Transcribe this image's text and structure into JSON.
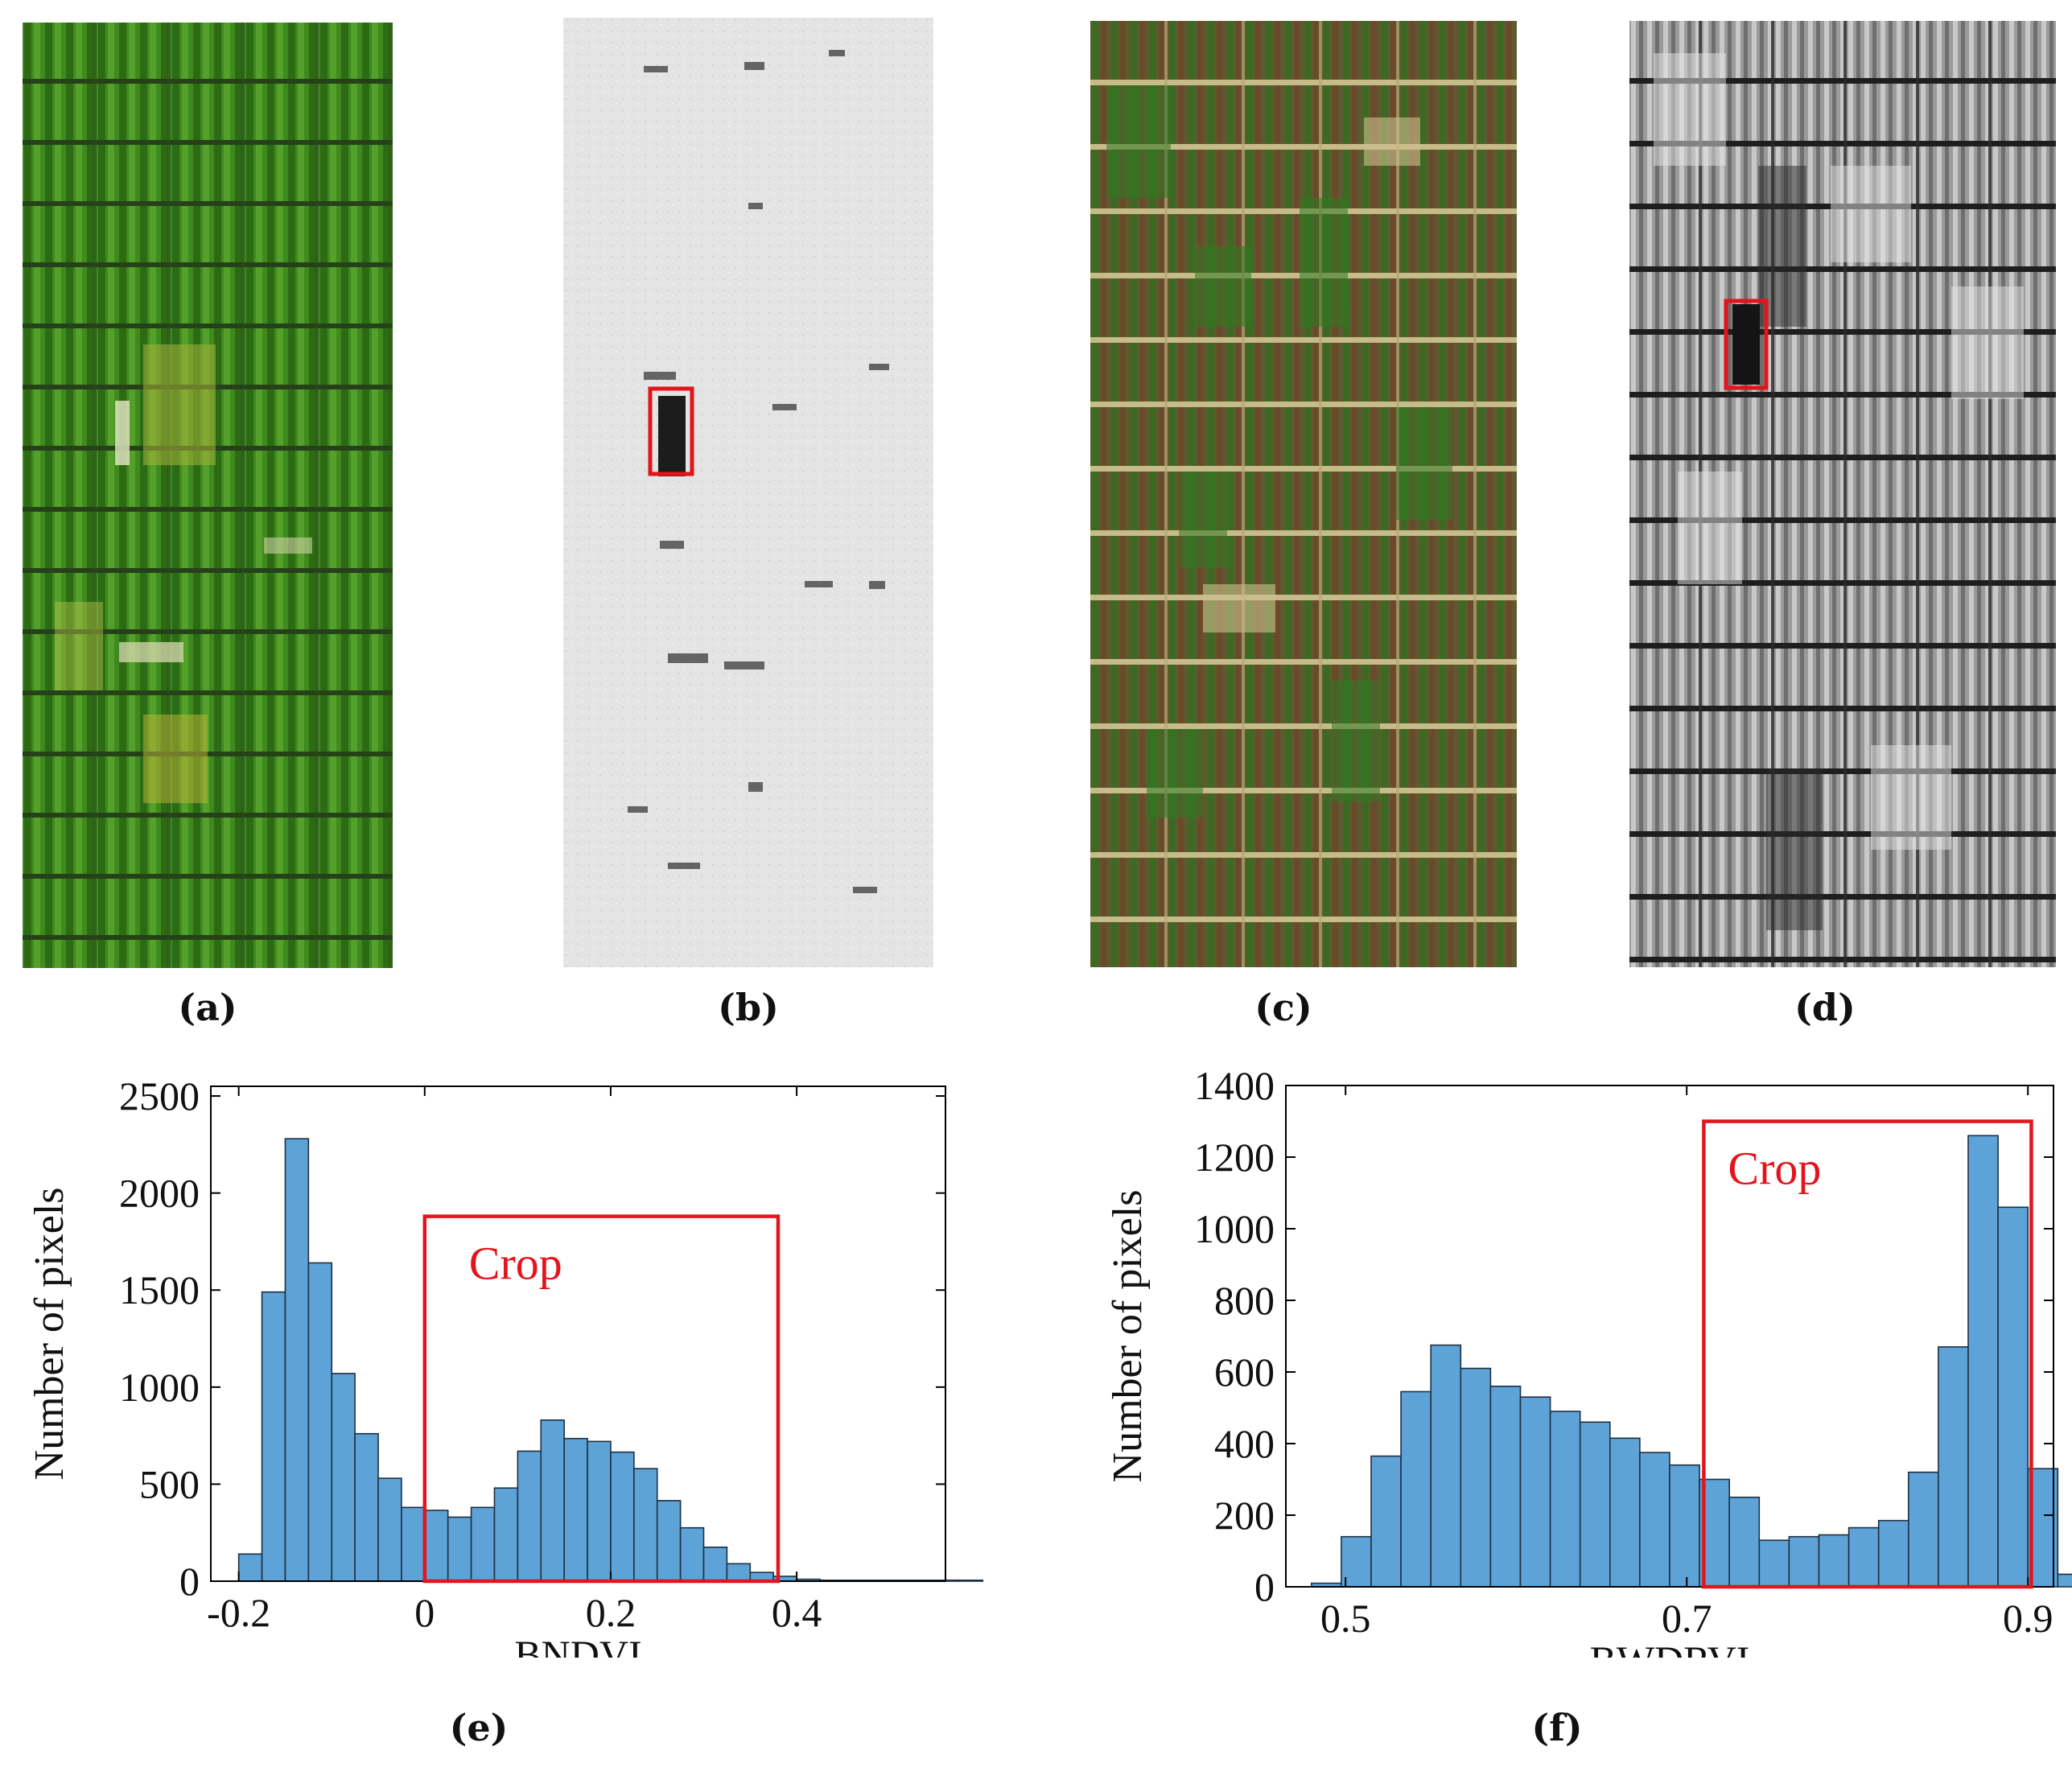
{
  "figure": {
    "panels": [
      {
        "id": "a",
        "label": "(a)",
        "kind": "RGB aerial image of crop plots",
        "palette": "green"
      },
      {
        "id": "b",
        "label": "(b)",
        "kind": "BNDVI grayscale map",
        "palette": "light-gray"
      },
      {
        "id": "c",
        "label": "(c)",
        "kind": "RGB aerial image of crop plots",
        "palette": "olive"
      },
      {
        "id": "d",
        "label": "(d)",
        "kind": "BWDRVI grayscale map",
        "palette": "dark-gray"
      }
    ],
    "label_e": "(e)",
    "label_f": "(f)",
    "highlight_color": "#e3141c",
    "bar_color": "#5da3d8",
    "bar_edge": "#1f2f3f"
  },
  "chart_data": [
    {
      "type": "bar",
      "panel": "e",
      "xlabel": "BNDVI",
      "ylabel": "Number of pixels",
      "xlim": [
        -0.23,
        0.56
      ],
      "ylim": [
        0,
        2550
      ],
      "xticks": [
        -0.2,
        0,
        0.2,
        0.4
      ],
      "xtick_labels": [
        "-0.2",
        "0",
        "0.2",
        "0.4"
      ],
      "yticks": [
        0,
        500,
        1000,
        1500,
        2000,
        2500
      ],
      "ytick_labels": [
        "0",
        "500",
        "1000",
        "1500",
        "2000",
        "2500"
      ],
      "bin_start": -0.2,
      "bin_width": 0.025,
      "values": [
        140,
        1490,
        2280,
        1640,
        1070,
        760,
        530,
        380,
        365,
        330,
        380,
        480,
        670,
        830,
        735,
        720,
        665,
        580,
        415,
        275,
        175,
        90,
        45,
        25,
        10,
        5,
        5,
        5,
        5,
        5,
        5,
        5
      ],
      "annotation": {
        "text": "Crop",
        "x0": 0.0,
        "x1": 0.38,
        "y0": 0,
        "y1": 1880
      }
    },
    {
      "type": "bar",
      "panel": "f",
      "xlabel": "BWDRVI",
      "ylabel": "Number of pixels",
      "xlim": [
        0.465,
        0.915
      ],
      "ylim": [
        0,
        1400
      ],
      "xticks": [
        0.5,
        0.7,
        0.9
      ],
      "xtick_labels": [
        "0.5",
        "0.7",
        "0.9"
      ],
      "yticks": [
        0,
        200,
        400,
        600,
        800,
        1000,
        1200,
        1400
      ],
      "ytick_labels": [
        "0",
        "200",
        "400",
        "600",
        "800",
        "1000",
        "1200",
        "1400"
      ],
      "bin_start": 0.48,
      "bin_width": 0.0175,
      "values": [
        10,
        140,
        365,
        545,
        675,
        610,
        560,
        530,
        490,
        460,
        415,
        375,
        340,
        300,
        250,
        130,
        140,
        145,
        165,
        185,
        320,
        670,
        1260,
        1060,
        330,
        35
      ],
      "annotation": {
        "text": "Crop",
        "x0": 0.71,
        "x1": 0.902,
        "y0": 0,
        "y1": 1300
      }
    }
  ]
}
